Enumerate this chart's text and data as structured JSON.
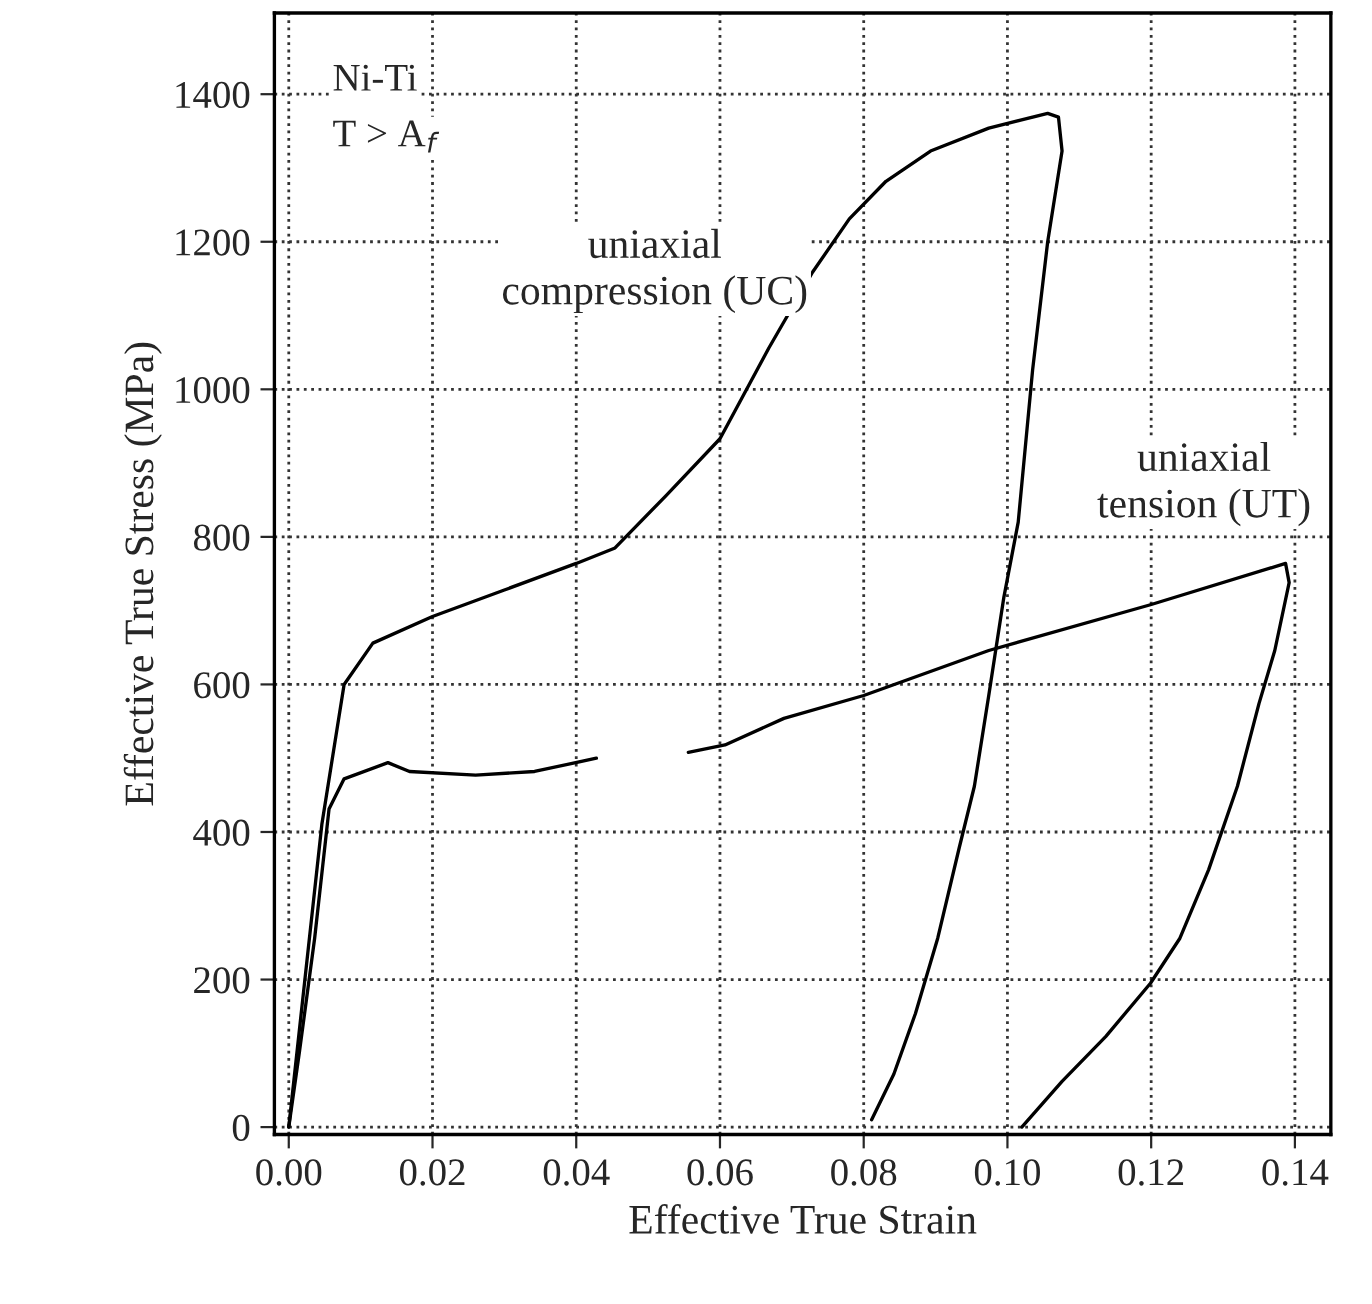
{
  "chart_data": {
    "type": "line",
    "xlabel": "Effective True Strain",
    "ylabel": "Effective True Stress (MPa)",
    "xlim": [
      -0.002,
      0.145
    ],
    "ylim": [
      -10,
      1510
    ],
    "xticks": [
      {
        "value": 0,
        "label": "0.00"
      },
      {
        "value": 0.02,
        "label": "0.02"
      },
      {
        "value": 0.04,
        "label": "0.04"
      },
      {
        "value": 0.06,
        "label": "0.06"
      },
      {
        "value": 0.08,
        "label": "0.08"
      },
      {
        "value": 0.1,
        "label": "0.10"
      },
      {
        "value": 0.12,
        "label": "0.12"
      },
      {
        "value": 0.14,
        "label": "0.14"
      }
    ],
    "yticks": [
      0,
      200,
      400,
      600,
      800,
      1000,
      1200,
      1400
    ],
    "grid": true,
    "line_style": "solid",
    "marker": "none",
    "legend": false,
    "annotations": [
      "Ni-Ti",
      "T > A$_{f}$"
    ],
    "series": [
      {
        "name": "uniaxial\ncompression (UC)",
        "color": "#000000",
        "x": [
          0,
          0.0046,
          0.0077,
          0.0117,
          0.02,
          0.03,
          0.04,
          0.0454,
          0.0525,
          0.06,
          0.0668,
          0.0729,
          0.078,
          0.0831,
          0.0893,
          0.0974,
          0.1056,
          0.1071,
          0.1076,
          0.1056,
          0.1035,
          0.1015,
          0.0995,
          0.0974,
          0.0954,
          0.0933,
          0.0903,
          0.0872,
          0.0842,
          0.0811
        ],
        "values": [
          0,
          410,
          600,
          656,
          692,
          728,
          764,
          785,
          856,
          933,
          1056,
          1159,
          1231,
          1282,
          1323,
          1354,
          1374,
          1369,
          1323,
          1200,
          1026,
          820,
          718,
          585,
          462,
          379,
          256,
          154,
          72,
          10
        ]
      },
      {
        "name": "uniaxial\ntension (UT)",
        "color": "#000000",
        "x": [
          0,
          0.0015,
          0.0036,
          0.0056,
          0.0077,
          0.0138,
          0.0168,
          0.026,
          0.0342,
          0.0428,
          0.049,
          0.0556,
          0.0607,
          0.0689,
          0.08,
          0.0974,
          0.1199,
          0.1387,
          0.1392,
          0.1372,
          0.135,
          0.132,
          0.128,
          0.124,
          0.1199,
          0.1137,
          0.1076,
          0.102
        ],
        "values": [
          0,
          103,
          256,
          431,
          472,
          494,
          482,
          477,
          482,
          500,
          null,
          508,
          518,
          554,
          585,
          646,
          708,
          764,
          738,
          646,
          574,
          462,
          349,
          256,
          195,
          123,
          62,
          0
        ]
      }
    ]
  }
}
